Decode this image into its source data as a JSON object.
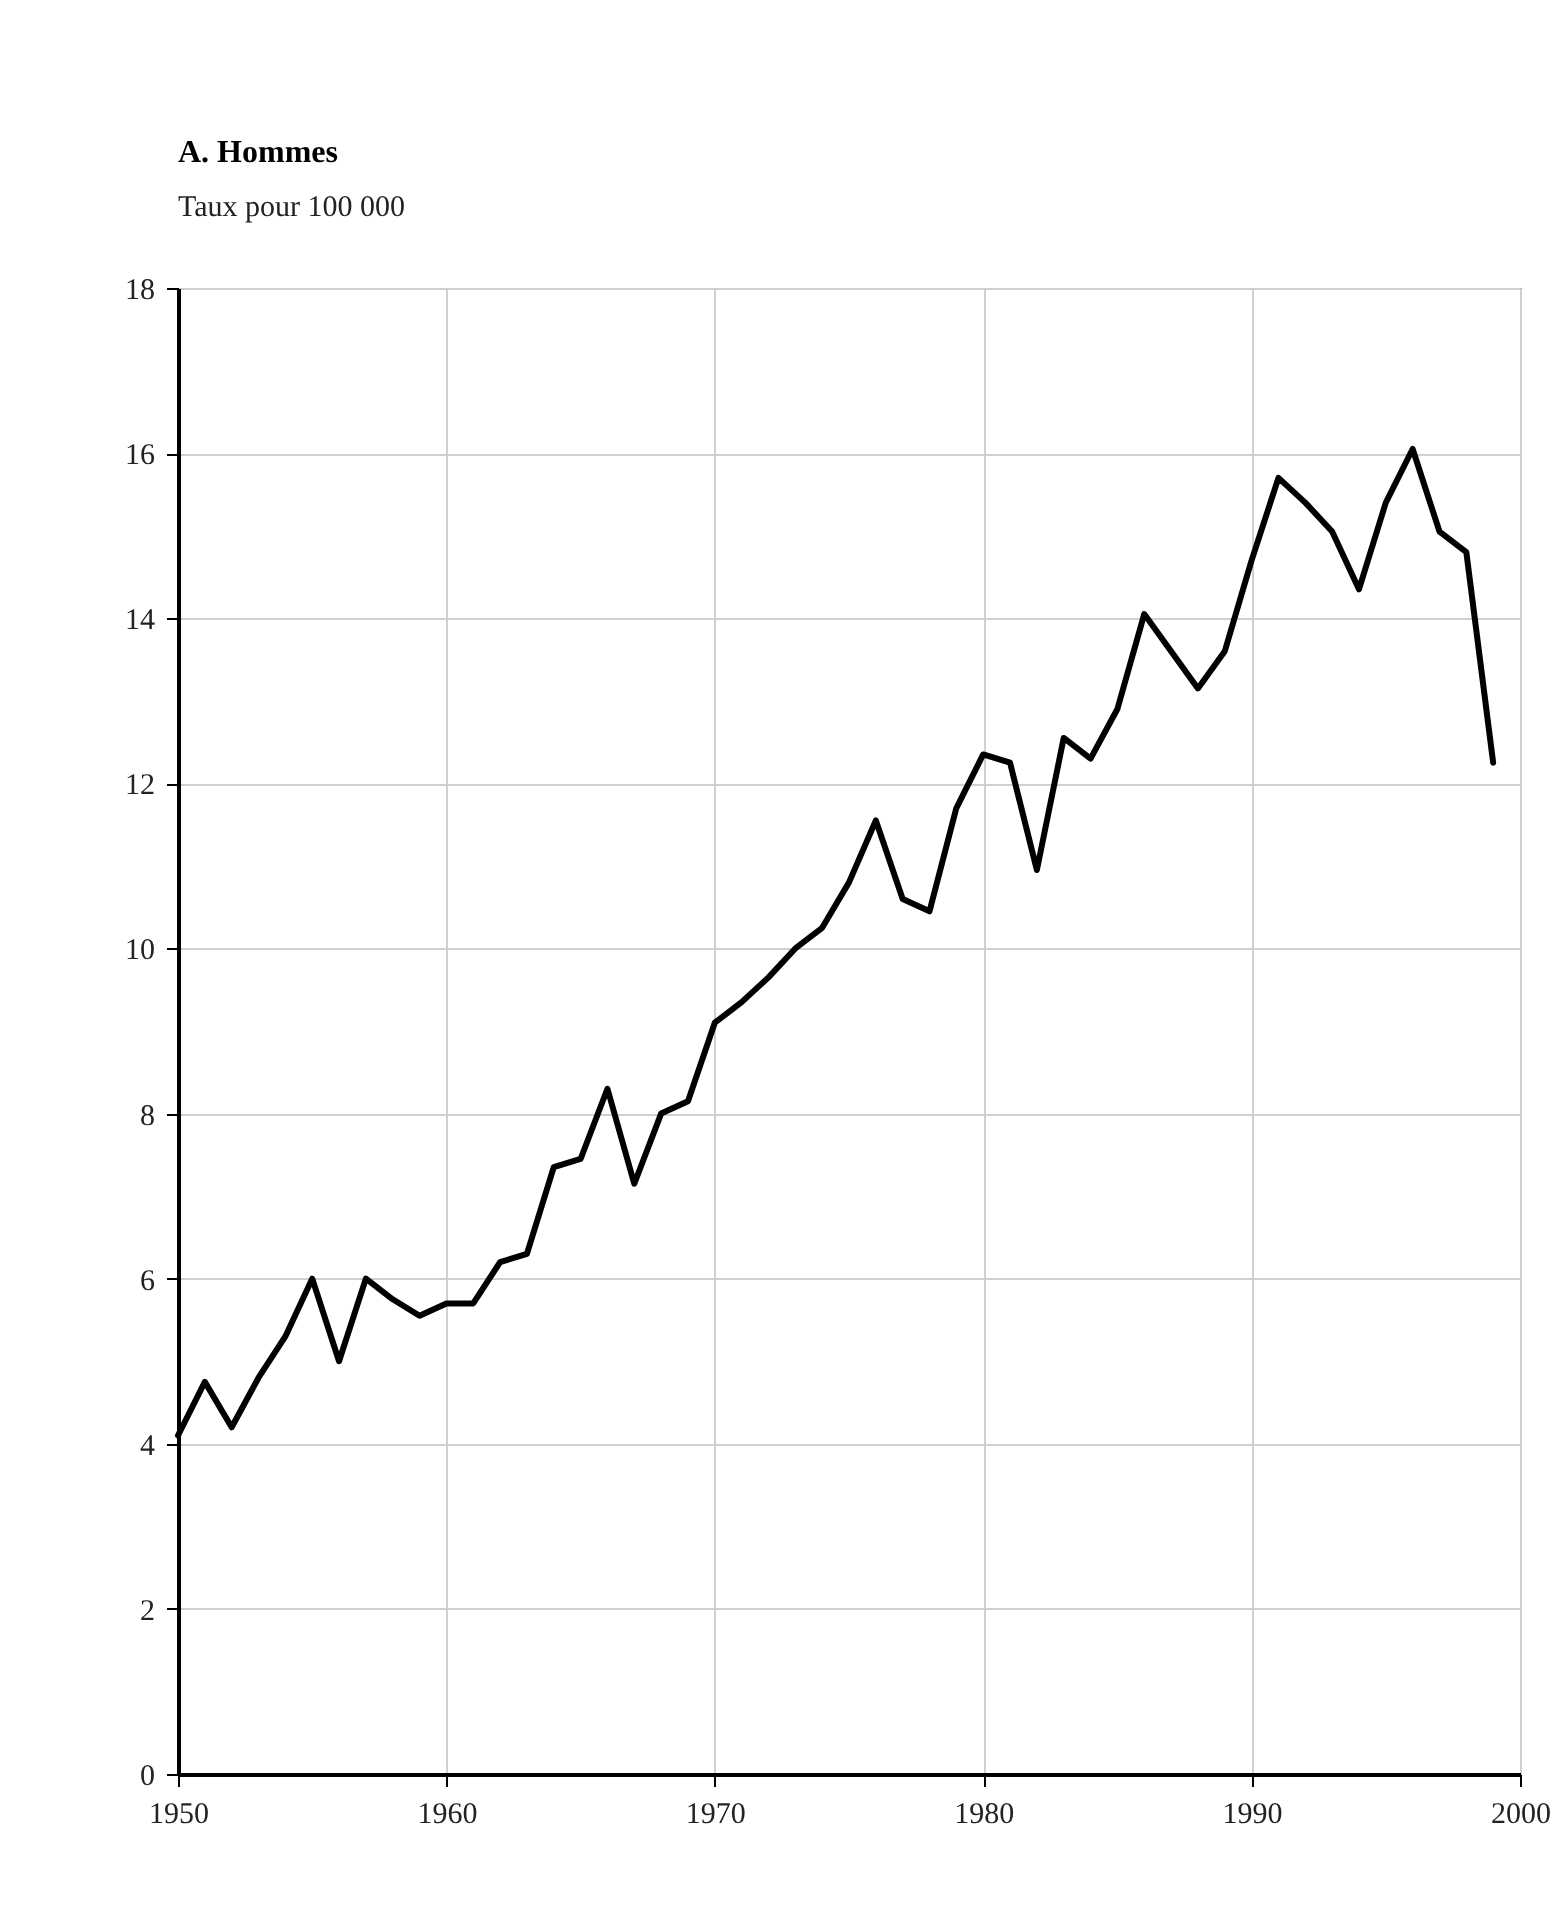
{
  "chart_data": {
    "type": "line",
    "title": "A. Hommes",
    "subtitle": "Taux pour 100 000",
    "x": [
      1950,
      1951,
      1952,
      1953,
      1954,
      1955,
      1956,
      1957,
      1958,
      1959,
      1960,
      1961,
      1962,
      1963,
      1964,
      1965,
      1966,
      1967,
      1968,
      1969,
      1970,
      1971,
      1972,
      1973,
      1974,
      1975,
      1976,
      1977,
      1978,
      1979,
      1980,
      1981,
      1982,
      1983,
      1984,
      1985,
      1986,
      1987,
      1988,
      1989,
      1990,
      1991,
      1992,
      1993,
      1994,
      1995,
      1996,
      1997,
      1998,
      1999
    ],
    "series": [
      {
        "color": "#000000",
        "values": [
          4.1,
          4.75,
          4.2,
          4.8,
          5.3,
          6.0,
          5.0,
          6.0,
          5.75,
          5.55,
          5.7,
          5.7,
          6.2,
          6.3,
          7.35,
          7.45,
          8.3,
          7.15,
          8.0,
          8.15,
          9.1,
          9.35,
          9.65,
          10.0,
          10.25,
          10.8,
          11.55,
          10.6,
          10.45,
          11.7,
          12.35,
          12.25,
          10.95,
          12.55,
          12.3,
          12.9,
          14.05,
          13.6,
          13.15,
          13.6,
          14.7,
          15.7,
          15.4,
          15.05,
          14.35,
          15.4,
          16.05,
          15.05,
          14.8,
          12.25
        ]
      }
    ],
    "xlim": [
      1950,
      2000
    ],
    "xticks": [
      1950,
      1960,
      1970,
      1980,
      1990,
      2000
    ],
    "ylim": [
      0,
      18
    ],
    "yticks": [
      0,
      2,
      4,
      6,
      8,
      10,
      12,
      14,
      16,
      18
    ],
    "grid": true,
    "marker": "none",
    "line_style": "solid"
  }
}
